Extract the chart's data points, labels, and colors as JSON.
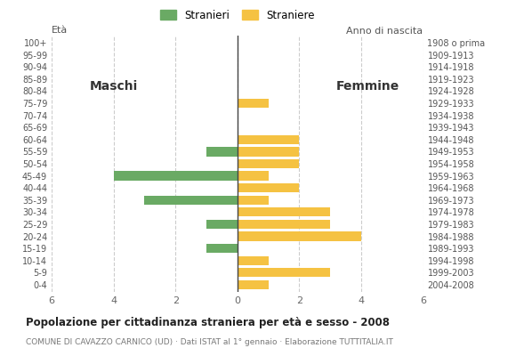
{
  "age_groups": [
    "100+",
    "95-99",
    "90-94",
    "85-89",
    "80-84",
    "75-79",
    "70-74",
    "65-69",
    "60-64",
    "55-59",
    "50-54",
    "45-49",
    "40-44",
    "35-39",
    "30-34",
    "25-29",
    "20-24",
    "15-19",
    "10-14",
    "5-9",
    "0-4"
  ],
  "birth_years": [
    "1908 o prima",
    "1909-1913",
    "1914-1918",
    "1919-1923",
    "1924-1928",
    "1929-1933",
    "1934-1938",
    "1939-1943",
    "1944-1948",
    "1949-1953",
    "1954-1958",
    "1959-1963",
    "1964-1968",
    "1969-1973",
    "1974-1978",
    "1979-1983",
    "1984-1988",
    "1989-1993",
    "1994-1998",
    "1999-2003",
    "2004-2008"
  ],
  "males": [
    0,
    0,
    0,
    0,
    0,
    0,
    0,
    0,
    0,
    1,
    0,
    4,
    0,
    3,
    0,
    1,
    0,
    1,
    0,
    0,
    0
  ],
  "females": [
    0,
    0,
    0,
    0,
    0,
    1,
    0,
    0,
    2,
    2,
    2,
    1,
    2,
    1,
    3,
    3,
    4,
    0,
    1,
    3,
    1
  ],
  "male_color": "#6aaa64",
  "female_color": "#f5c242",
  "title": "Popolazione per cittadinanza straniera per età e sesso - 2008",
  "subtitle": "COMUNE DI CAVAZZO CARNICO (UD) · Dati ISTAT al 1° gennaio · Elaborazione TUTTITALIA.IT",
  "legend_male": "Stranieri",
  "legend_female": "Straniere",
  "xlim": 6,
  "label_eta": "Età",
  "label_anno": "Anno di nascita",
  "label_maschi": "Maschi",
  "label_femmine": "Femmine",
  "bg_color": "#ffffff",
  "grid_color": "#cccccc",
  "bar_height": 0.75
}
